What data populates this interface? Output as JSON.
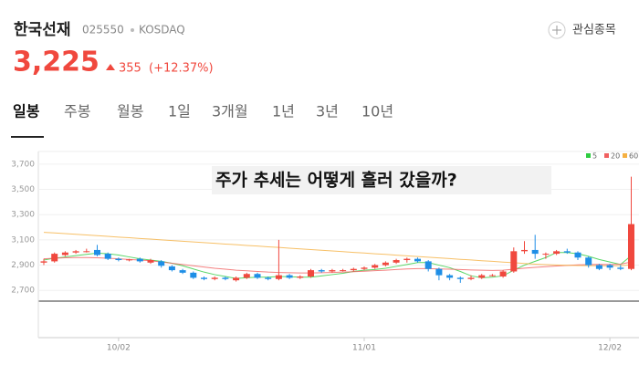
{
  "header": {
    "name": "한국선재",
    "code": "025550",
    "market": "KOSDAQ",
    "watch": "관심종목",
    "price": "3,225",
    "change": "355",
    "change_pct": "(+12.37%)"
  },
  "tabs": [
    "일봉",
    "주봉",
    "월봉",
    "1일",
    "3개월",
    "1년",
    "3년",
    "10년"
  ],
  "overlay": "주가 추세는 어떻게 흘러 갔을까?",
  "chart_data": {
    "type": "candlestick",
    "up_color": "#f0483e",
    "down_color": "#1e8ee6",
    "ylim": [
      2615,
      3800
    ],
    "yticks": [
      {
        "value": 2700,
        "label": "2,700"
      },
      {
        "value": 2900,
        "label": "2,900"
      },
      {
        "value": 3100,
        "label": "3,100"
      },
      {
        "value": 3300,
        "label": "3,300"
      },
      {
        "value": 3500,
        "label": "3,500"
      },
      {
        "value": 3700,
        "label": "3,700"
      }
    ],
    "grid": true,
    "categories": [
      null,
      null,
      null,
      null,
      null,
      null,
      null,
      "10/02",
      null,
      null,
      null,
      null,
      null,
      null,
      null,
      null,
      null,
      null,
      null,
      null,
      null,
      null,
      null,
      null,
      null,
      null,
      null,
      null,
      null,
      null,
      "11/01",
      null,
      null,
      null,
      null,
      null,
      null,
      null,
      null,
      null,
      null,
      null,
      null,
      null,
      null,
      null,
      null,
      null,
      null,
      null,
      null,
      null,
      null,
      "12/02",
      null,
      null
    ],
    "candles": [
      [
        2920,
        2950,
        2900,
        2930
      ],
      [
        2930,
        3000,
        2920,
        2990
      ],
      [
        2980,
        3010,
        2970,
        3000
      ],
      [
        3000,
        3020,
        2990,
        3010
      ],
      [
        3010,
        3030,
        3000,
        3010
      ],
      [
        3020,
        3060,
        2970,
        2980
      ],
      [
        2990,
        3000,
        2940,
        2950
      ],
      [
        2950,
        2960,
        2930,
        2940
      ],
      [
        2940,
        2950,
        2930,
        2945
      ],
      [
        2950,
        2960,
        2920,
        2930
      ],
      [
        2920,
        2950,
        2910,
        2940
      ],
      [
        2930,
        2940,
        2880,
        2895
      ],
      [
        2890,
        2900,
        2850,
        2860
      ],
      [
        2860,
        2870,
        2830,
        2840
      ],
      [
        2840,
        2850,
        2790,
        2800
      ],
      [
        2800,
        2810,
        2780,
        2790
      ],
      [
        2790,
        2810,
        2780,
        2800
      ],
      [
        2800,
        2810,
        2780,
        2790
      ],
      [
        2780,
        2810,
        2770,
        2800
      ],
      [
        2800,
        2840,
        2790,
        2830
      ],
      [
        2830,
        2840,
        2790,
        2800
      ],
      [
        2800,
        2810,
        2780,
        2790
      ],
      [
        2790,
        3100,
        2780,
        2820
      ],
      [
        2820,
        2830,
        2790,
        2800
      ],
      [
        2800,
        2820,
        2790,
        2810
      ],
      [
        2810,
        2870,
        2800,
        2860
      ],
      [
        2860,
        2870,
        2840,
        2850
      ],
      [
        2850,
        2870,
        2840,
        2860
      ],
      [
        2860,
        2870,
        2850,
        2860
      ],
      [
        2860,
        2880,
        2850,
        2870
      ],
      [
        2870,
        2890,
        2860,
        2880
      ],
      [
        2880,
        2910,
        2870,
        2900
      ],
      [
        2900,
        2930,
        2890,
        2920
      ],
      [
        2920,
        2950,
        2910,
        2940
      ],
      [
        2940,
        2960,
        2920,
        2950
      ],
      [
        2950,
        2960,
        2920,
        2930
      ],
      [
        2930,
        2940,
        2850,
        2870
      ],
      [
        2870,
        2880,
        2780,
        2820
      ],
      [
        2820,
        2830,
        2780,
        2800
      ],
      [
        2800,
        2810,
        2760,
        2790
      ],
      [
        2790,
        2820,
        2780,
        2800
      ],
      [
        2800,
        2830,
        2790,
        2820
      ],
      [
        2820,
        2830,
        2810,
        2820
      ],
      [
        2810,
        2860,
        2800,
        2850
      ],
      [
        2850,
        3040,
        2840,
        3010
      ],
      [
        3010,
        3090,
        2990,
        3020
      ],
      [
        3020,
        3140,
        2950,
        2990
      ],
      [
        2990,
        3000,
        2950,
        2990
      ],
      [
        2990,
        3020,
        2980,
        3010
      ],
      [
        3010,
        3030,
        2990,
        3000
      ],
      [
        3000,
        3010,
        2940,
        2960
      ],
      [
        2960,
        2970,
        2880,
        2900
      ],
      [
        2900,
        2910,
        2860,
        2870
      ],
      [
        2900,
        2910,
        2860,
        2880
      ],
      [
        2880,
        2900,
        2860,
        2870
      ],
      [
        2870,
        3600,
        2860,
        3225
      ]
    ],
    "series": [
      {
        "name": "5",
        "color": "#2ecc40",
        "values": [
          2940,
          2955,
          2965,
          2975,
          2985,
          2995,
          2990,
          2980,
          2965,
          2950,
          2940,
          2930,
          2915,
          2895,
          2870,
          2845,
          2825,
          2810,
          2795,
          2800,
          2805,
          2805,
          2810,
          2808,
          2805,
          2805,
          2815,
          2825,
          2835,
          2850,
          2860,
          2865,
          2875,
          2890,
          2905,
          2920,
          2920,
          2900,
          2880,
          2850,
          2815,
          2800,
          2805,
          2815,
          2860,
          2900,
          2930,
          2960,
          3000,
          3000,
          2990,
          2970,
          2945,
          2925,
          2905,
          2975
        ]
      },
      {
        "name": "20",
        "color": "#f06060",
        "values": [
          2950,
          2955,
          2958,
          2960,
          2960,
          2958,
          2955,
          2950,
          2945,
          2940,
          2935,
          2925,
          2915,
          2905,
          2895,
          2885,
          2875,
          2868,
          2860,
          2855,
          2850,
          2845,
          2842,
          2840,
          2838,
          2838,
          2840,
          2842,
          2845,
          2848,
          2852,
          2856,
          2860,
          2865,
          2870,
          2872,
          2872,
          2870,
          2868,
          2865,
          2862,
          2860,
          2858,
          2860,
          2868,
          2876,
          2882,
          2888,
          2893,
          2898,
          2902,
          2905,
          2906,
          2905,
          2908,
          2925
        ]
      },
      {
        "name": "60",
        "color": "#f5b041",
        "values": [
          3160,
          3155,
          3150,
          3144,
          3139,
          3133,
          3128,
          3122,
          3117,
          3111,
          3106,
          3100,
          3095,
          3089,
          3084,
          3078,
          3073,
          3067,
          3062,
          3056,
          3051,
          3045,
          3040,
          3034,
          3029,
          3023,
          3018,
          3012,
          3007,
          3001,
          2996,
          2990,
          2985,
          2979,
          2974,
          2968,
          2963,
          2957,
          2952,
          2946,
          2941,
          2935,
          2930,
          2924,
          2919,
          2913,
          2908,
          2904,
          2901,
          2899,
          2897,
          2896,
          2895,
          2895,
          2896,
          2902
        ]
      }
    ]
  }
}
